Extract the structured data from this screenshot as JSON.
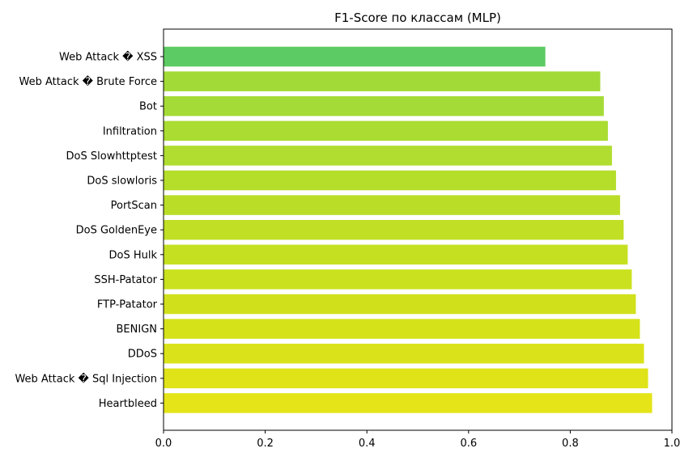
{
  "chart_data": {
    "type": "bar",
    "orientation": "horizontal",
    "title": "F1-Score по классам (MLP)",
    "xlabel": "",
    "ylabel": "",
    "xlim": [
      0.0,
      1.0
    ],
    "grid": false,
    "categories": [
      "Web Attack � XSS",
      "Web Attack � Brute Force",
      "Bot",
      "Infiltration",
      "DoS Slowhttptest",
      "DoS slowloris",
      "PortScan",
      "DoS GoldenEye",
      "DoS Hulk",
      "SSH-Patator",
      "FTP-Patator",
      "BENIGN",
      "DDoS",
      "Web Attack � Sql Injection",
      "Heartbleed"
    ],
    "values": [
      0.751,
      0.859,
      0.866,
      0.874,
      0.882,
      0.89,
      0.898,
      0.905,
      0.913,
      0.921,
      0.929,
      0.937,
      0.945,
      0.953,
      0.961
    ],
    "colors": [
      "#5dcb63",
      "#a2da37",
      "#a5db36",
      "#aadc32",
      "#b0dd2f",
      "#b5de2b",
      "#bade28",
      "#c0df25",
      "#c5e021",
      "#cae11f",
      "#d0e11c",
      "#d5e21a",
      "#dae319",
      "#dfe318",
      "#e4e419"
    ],
    "xticks": [
      "0.0",
      "0.2",
      "0.4",
      "0.6",
      "0.8",
      "1.0"
    ]
  }
}
